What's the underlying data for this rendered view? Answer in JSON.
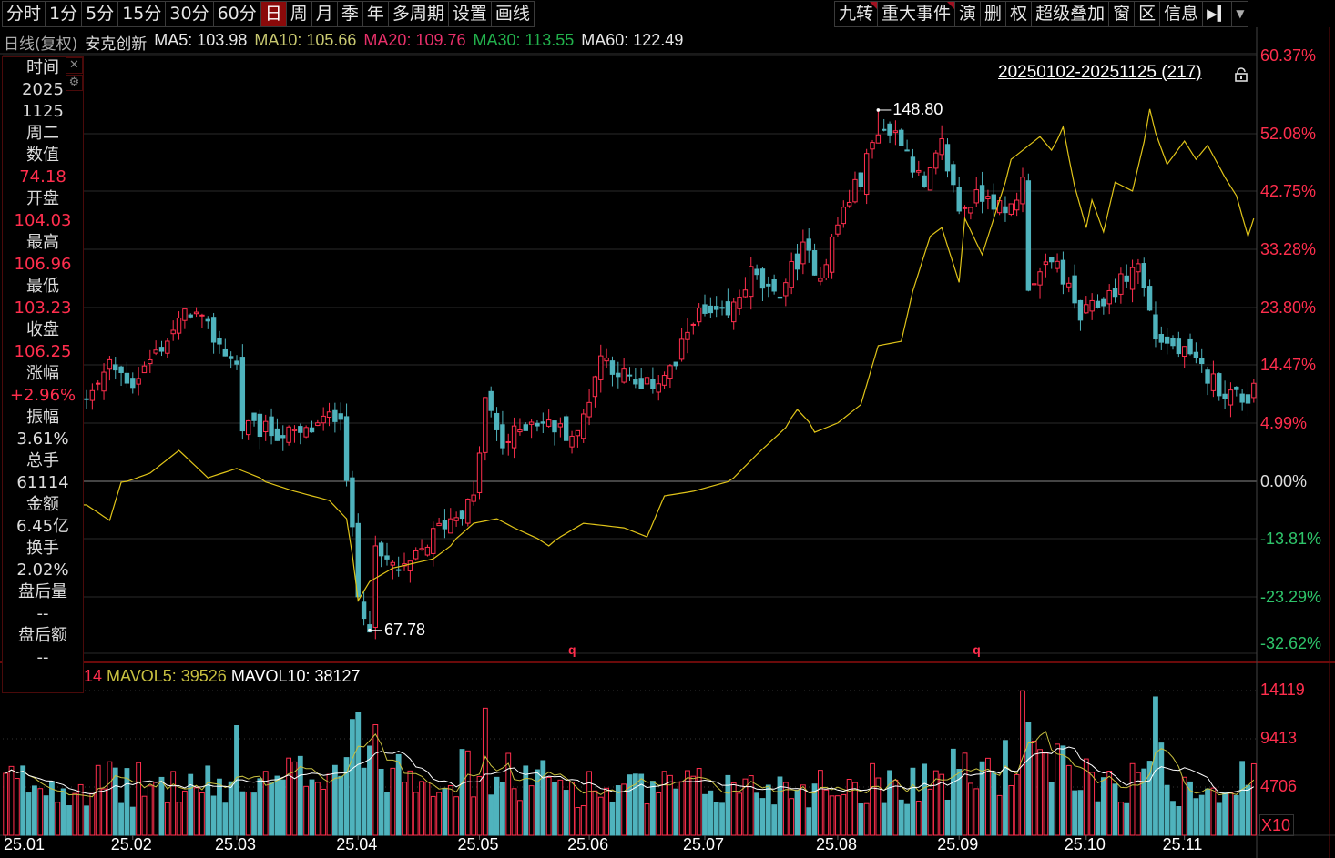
{
  "toolbar_left": [
    "分时",
    "1分",
    "5分",
    "15分",
    "30分",
    "60分",
    "日",
    "周",
    "月",
    "季",
    "年",
    "多周期",
    "设置",
    "画线"
  ],
  "toolbar_left_active": "日",
  "toolbar_right": [
    "九转",
    "重大事件",
    "演",
    "删",
    "权",
    "超级叠加",
    "窗",
    "区",
    "信息"
  ],
  "toolbar_right_flagged": [
    "九转",
    "重大事件"
  ],
  "header": {
    "period": "日线(复权)",
    "stock": "安克创新",
    "ma": [
      {
        "label": "MA5: 103.98",
        "color": "#e8e8e8"
      },
      {
        "label": "MA10: 105.66",
        "color": "#c8c870"
      },
      {
        "label": "MA20: 109.76",
        "color": "#e8306a"
      },
      {
        "label": "MA30: 113.55",
        "color": "#22b14c"
      },
      {
        "label": "MA60: 122.49",
        "color": "#e8e8e8"
      }
    ]
  },
  "panel": [
    {
      "t": "时间",
      "c": "lbl"
    },
    {
      "t": "2025",
      "c": "val"
    },
    {
      "t": "1125",
      "c": "val"
    },
    {
      "t": "周二",
      "c": "val"
    },
    {
      "t": "数值",
      "c": "lbl"
    },
    {
      "t": "74.18",
      "c": "red"
    },
    {
      "t": "开盘",
      "c": "lbl"
    },
    {
      "t": "104.03",
      "c": "red"
    },
    {
      "t": "最高",
      "c": "lbl"
    },
    {
      "t": "106.96",
      "c": "red"
    },
    {
      "t": "最低",
      "c": "lbl"
    },
    {
      "t": "103.23",
      "c": "red"
    },
    {
      "t": "收盘",
      "c": "lbl"
    },
    {
      "t": "106.25",
      "c": "red"
    },
    {
      "t": "涨幅",
      "c": "lbl"
    },
    {
      "t": "+2.96%",
      "c": "red"
    },
    {
      "t": "振幅",
      "c": "lbl"
    },
    {
      "t": "3.61%",
      "c": "val"
    },
    {
      "t": "总手",
      "c": "lbl"
    },
    {
      "t": "61114",
      "c": "val"
    },
    {
      "t": "金额",
      "c": "lbl"
    },
    {
      "t": "6.45亿",
      "c": "val"
    },
    {
      "t": "换手",
      "c": "lbl"
    },
    {
      "t": "2.02%",
      "c": "val"
    },
    {
      "t": "盘后量",
      "c": "lbl"
    },
    {
      "t": "--",
      "c": "val"
    },
    {
      "t": "盘后额",
      "c": "lbl"
    },
    {
      "t": "--",
      "c": "val"
    }
  ],
  "range_label": "20250102-20251125 (217)",
  "volume_header": {
    "partial": "14",
    "mavol5": "MAVOL5: 39526",
    "mavol10": "MAVOL10: 38127"
  },
  "colors": {
    "up": "#ff2e4d",
    "down": "#4fb3bd",
    "compare": "#e0c419",
    "mavol5": "#c8c040",
    "mavol10": "#ffffff",
    "grid": "#2a2a2a"
  },
  "chart_data": {
    "type": "candlestick",
    "count": 217,
    "price_ylim": [
      64.2,
      157.3
    ],
    "close_keypoints": [
      [
        0,
        104
      ],
      [
        14,
        103.6
      ],
      [
        18,
        109
      ],
      [
        22,
        106.4
      ],
      [
        32,
        117.8
      ],
      [
        40,
        109
      ],
      [
        41,
        99.4
      ],
      [
        51,
        98
      ],
      [
        58,
        102
      ],
      [
        59,
        92
      ],
      [
        61,
        73
      ],
      [
        63,
        69
      ],
      [
        64,
        79.5
      ],
      [
        69,
        76.7
      ],
      [
        75,
        83.8
      ],
      [
        81,
        88
      ],
      [
        83,
        103.6
      ],
      [
        86,
        96.5
      ],
      [
        91,
        100.8
      ],
      [
        99,
        98
      ],
      [
        103,
        110.7
      ],
      [
        110,
        105
      ],
      [
        116,
        109
      ],
      [
        119,
        116.9
      ],
      [
        125,
        116.4
      ],
      [
        129,
        123.4
      ],
      [
        133,
        119.2
      ],
      [
        138,
        127
      ],
      [
        141,
        123.4
      ],
      [
        145,
        133.4
      ],
      [
        148,
        138.3
      ],
      [
        151,
        146.1
      ],
      [
        155,
        144.7
      ],
      [
        159,
        136.2
      ],
      [
        162,
        143.3
      ],
      [
        165,
        133.4
      ],
      [
        170,
        136.2
      ],
      [
        173,
        132
      ],
      [
        176,
        137.6
      ],
      [
        177,
        122
      ],
      [
        182,
        124.9
      ],
      [
        186,
        116.4
      ],
      [
        190,
        119.2
      ],
      [
        196,
        124.9
      ],
      [
        199,
        113.6
      ],
      [
        204,
        110.7
      ],
      [
        211,
        105
      ],
      [
        215,
        103.8
      ],
      [
        216,
        106.25
      ]
    ],
    "last_bar": {
      "open": 104.03,
      "high": 106.96,
      "low": 103.23,
      "close": 106.25
    },
    "max_label": {
      "index": 151,
      "value": "148.80"
    },
    "min_label": {
      "index": 63,
      "value": "67.78"
    },
    "compare_series_pct": [
      [
        0,
        -5
      ],
      [
        14,
        -5.7
      ],
      [
        18,
        -9.4
      ],
      [
        20,
        -0.2
      ],
      [
        25,
        0.7
      ],
      [
        30,
        2.65
      ],
      [
        35,
        0.3
      ],
      [
        40,
        1.1
      ],
      [
        44,
        0.3
      ],
      [
        50,
        -2.4
      ],
      [
        56,
        -4.6
      ],
      [
        59,
        -9
      ],
      [
        61,
        -23.9
      ],
      [
        63,
        -20.8
      ],
      [
        67,
        -18.6
      ],
      [
        74,
        -17.1
      ],
      [
        77,
        -15
      ],
      [
        81,
        -10.1
      ],
      [
        85,
        -9
      ],
      [
        88,
        -11.2
      ],
      [
        94,
        -15
      ],
      [
        100,
        -10.1
      ],
      [
        107,
        -11.2
      ],
      [
        111,
        -13.4
      ],
      [
        114,
        -3.5
      ],
      [
        119,
        -2.4
      ],
      [
        126,
        0.3
      ],
      [
        130,
        2.3
      ],
      [
        135,
        4.6
      ],
      [
        137,
        7.2
      ],
      [
        140,
        4.2
      ],
      [
        144,
        5
      ],
      [
        148,
        8
      ],
      [
        151,
        17.6
      ],
      [
        155,
        18.3
      ],
      [
        157,
        26.5
      ],
      [
        160,
        35.4
      ],
      [
        162,
        36.8
      ],
      [
        165,
        27.9
      ],
      [
        166,
        38.3
      ],
      [
        169,
        32.4
      ],
      [
        173,
        44.2
      ],
      [
        174,
        47.9
      ],
      [
        179,
        51.6
      ],
      [
        181,
        49.4
      ],
      [
        183,
        52.8
      ],
      [
        185,
        43.5
      ],
      [
        187,
        36.8
      ],
      [
        188,
        41.3
      ],
      [
        190,
        36.1
      ],
      [
        192,
        44.2
      ],
      [
        195,
        42.75
      ],
      [
        198,
        54.7
      ],
      [
        201,
        47.1
      ],
      [
        204,
        50.9
      ],
      [
        206,
        47.9
      ],
      [
        208,
        50.2
      ],
      [
        211,
        45
      ],
      [
        213,
        42
      ],
      [
        215,
        35.4
      ],
      [
        216,
        38.3
      ]
    ],
    "pct_ticks": [
      "60.37%",
      "52.08%",
      "42.75%",
      "33.28%",
      "23.80%",
      "14.47%",
      "4.99%",
      "0.00%",
      "-13.81%",
      "-23.29%",
      "-32.62%"
    ],
    "pct_tick_values": [
      60.37,
      52.08,
      42.75,
      33.28,
      23.8,
      14.47,
      4.99,
      0,
      -13.81,
      -23.29,
      -32.62
    ],
    "volume_ticks": [
      "14119",
      "9413",
      "4706"
    ],
    "volume_tick_values": [
      14119,
      9413,
      4706
    ],
    "volume_unit": "X10",
    "volume_baseline_keypoints": [
      [
        0,
        5200
      ],
      [
        30,
        4800
      ],
      [
        45,
        4600
      ],
      [
        60,
        8000
      ],
      [
        75,
        6200
      ],
      [
        90,
        5500
      ],
      [
        105,
        4300
      ],
      [
        120,
        4600
      ],
      [
        140,
        4800
      ],
      [
        160,
        5500
      ],
      [
        176,
        7000
      ],
      [
        190,
        5500
      ],
      [
        205,
        5000
      ],
      [
        216,
        5200
      ]
    ],
    "volume_spikes": [
      [
        40,
        10700
      ],
      [
        60,
        11300
      ],
      [
        61,
        12000
      ],
      [
        63,
        8700
      ],
      [
        83,
        12400
      ],
      [
        176,
        14100
      ],
      [
        177,
        11000
      ],
      [
        199,
        13500
      ],
      [
        200,
        9000
      ]
    ],
    "x_ticks": [
      {
        "index": 0,
        "label": "25.01"
      },
      {
        "index": 22,
        "label": "25.02"
      },
      {
        "index": 40,
        "label": "25.03"
      },
      {
        "index": 61,
        "label": "25.04"
      },
      {
        "index": 82,
        "label": "25.05"
      },
      {
        "index": 101,
        "label": "25.06"
      },
      {
        "index": 121,
        "label": "25.07"
      },
      {
        "index": 144,
        "label": "25.08"
      },
      {
        "index": 165,
        "label": "25.09"
      },
      {
        "index": 187,
        "label": "25.10"
      },
      {
        "index": 204,
        "label": "25.11"
      }
    ],
    "markers": [
      {
        "index": 98,
        "label": "q"
      },
      {
        "index": 168,
        "label": "q"
      }
    ]
  }
}
